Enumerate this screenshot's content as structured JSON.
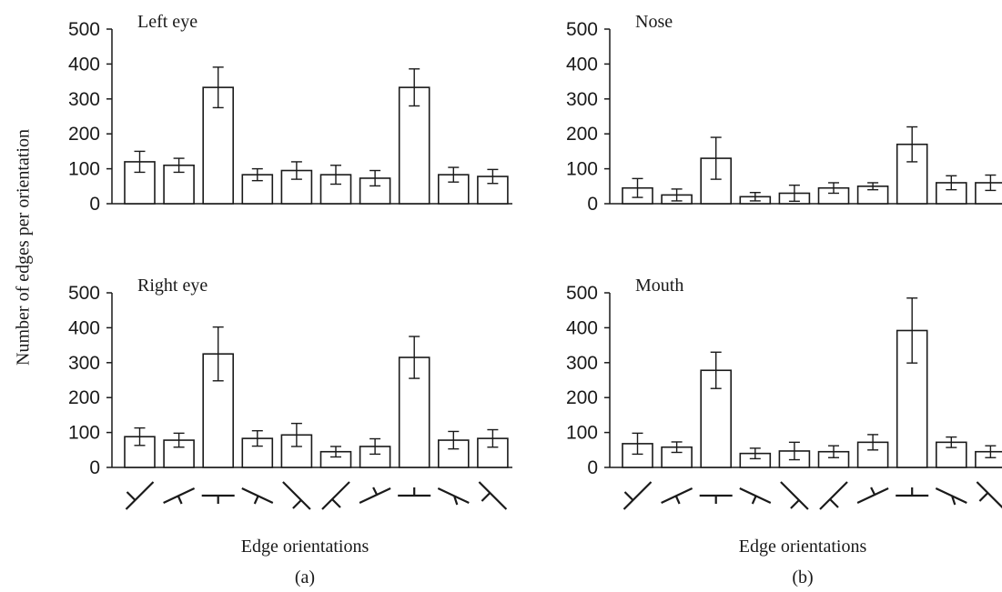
{
  "figure": {
    "ylabel": "Number of edges per orientation",
    "xlabel_left": "Edge orientations",
    "xlabel_right": "Edge orientations",
    "label_left": "(a)",
    "label_right": "(b)"
  },
  "chart_data": [
    {
      "type": "bar",
      "title": "Left eye",
      "categories": [
        "orientation-1",
        "orientation-2",
        "orientation-3",
        "orientation-4",
        "orientation-5",
        "orientation-6",
        "orientation-7",
        "orientation-8",
        "orientation-9",
        "orientation-10"
      ],
      "values": [
        120,
        110,
        333,
        83,
        95,
        83,
        73,
        333,
        83,
        78
      ],
      "error": [
        30,
        20,
        58,
        17,
        25,
        27,
        22,
        53,
        21,
        20
      ],
      "yticks": [
        0,
        100,
        200,
        300,
        400,
        500
      ],
      "ylim": [
        0,
        500
      ]
    },
    {
      "type": "bar",
      "title": "Nose",
      "categories": [
        "orientation-1",
        "orientation-2",
        "orientation-3",
        "orientation-4",
        "orientation-5",
        "orientation-6",
        "orientation-7",
        "orientation-8",
        "orientation-9",
        "orientation-10"
      ],
      "values": [
        45,
        25,
        130,
        20,
        30,
        45,
        50,
        170,
        60,
        60
      ],
      "error": [
        27,
        17,
        60,
        12,
        23,
        15,
        10,
        50,
        20,
        22
      ],
      "yticks": [
        0,
        100,
        200,
        300,
        400,
        500
      ],
      "ylim": [
        0,
        500
      ]
    },
    {
      "type": "bar",
      "title": "Right eye",
      "categories": [
        "orientation-1",
        "orientation-2",
        "orientation-3",
        "orientation-4",
        "orientation-5",
        "orientation-6",
        "orientation-7",
        "orientation-8",
        "orientation-9",
        "orientation-10"
      ],
      "values": [
        88,
        78,
        325,
        83,
        93,
        45,
        60,
        315,
        78,
        83
      ],
      "error": [
        25,
        20,
        77,
        22,
        33,
        15,
        22,
        60,
        25,
        25
      ],
      "yticks": [
        0,
        100,
        200,
        300,
        400,
        500
      ],
      "ylim": [
        0,
        500
      ]
    },
    {
      "type": "bar",
      "title": "Mouth",
      "categories": [
        "orientation-1",
        "orientation-2",
        "orientation-3",
        "orientation-4",
        "orientation-5",
        "orientation-6",
        "orientation-7",
        "orientation-8",
        "orientation-9",
        "orientation-10"
      ],
      "values": [
        68,
        58,
        278,
        40,
        47,
        45,
        72,
        392,
        72,
        45
      ],
      "error": [
        30,
        15,
        52,
        15,
        25,
        17,
        22,
        93,
        15,
        17
      ],
      "yticks": [
        0,
        100,
        200,
        300,
        400,
        500
      ],
      "ylim": [
        0,
        500
      ]
    }
  ]
}
